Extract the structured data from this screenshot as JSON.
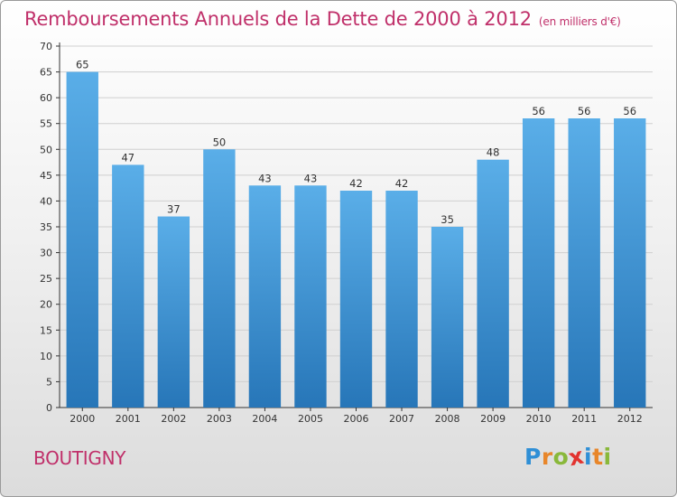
{
  "chart_data": {
    "type": "bar",
    "title": "Remboursements Annuels de la Dette de 2000 à 2012",
    "unit": "(en milliers d'€)",
    "categories": [
      "2000",
      "2001",
      "2002",
      "2003",
      "2004",
      "2005",
      "2006",
      "2007",
      "2008",
      "2009",
      "2010",
      "2011",
      "2012"
    ],
    "values": [
      65,
      47,
      37,
      50,
      43,
      43,
      42,
      42,
      35,
      48,
      56,
      56,
      56
    ],
    "ylim": [
      0,
      70
    ],
    "yticks": [
      0,
      5,
      10,
      15,
      20,
      25,
      30,
      35,
      40,
      45,
      50,
      55,
      60,
      65,
      70
    ],
    "grid": true,
    "bar_color_top": "#5aaee8",
    "bar_color_bottom": "#2776b8"
  },
  "place_name": "BOUTIGNY",
  "logo": {
    "text": "Proxiti",
    "letters": [
      {
        "ch": "P",
        "color": "#2f8fd6"
      },
      {
        "ch": "r",
        "color": "#e8862a"
      },
      {
        "ch": "o",
        "color": "#89b83a"
      },
      {
        "ch": "x",
        "color": "#e2332f"
      },
      {
        "ch": "i",
        "color": "#2f8fd6"
      },
      {
        "ch": "t",
        "color": "#e8862a"
      },
      {
        "ch": "i",
        "color": "#89b83a"
      }
    ]
  },
  "colors": {
    "title": "#c0306a",
    "grid": "#cfcfcf"
  }
}
